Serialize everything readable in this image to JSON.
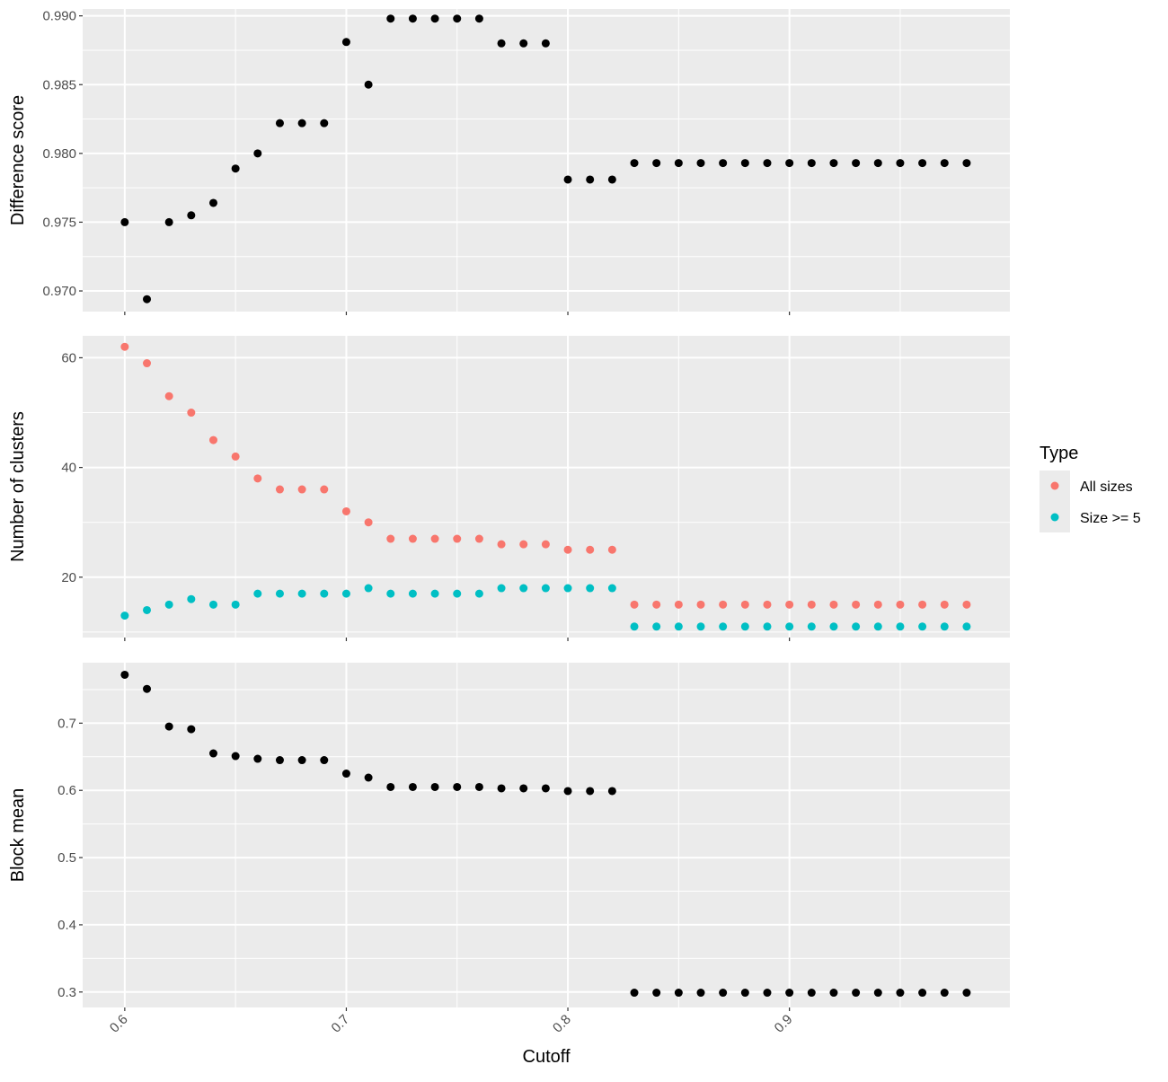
{
  "chart_data": {
    "type": "scatter",
    "xlabel": "Cutoff",
    "xlim": [
      0.581,
      0.9995
    ],
    "x_ticks": [
      "0.6",
      "0.7",
      "0.8",
      "0.9"
    ],
    "x_tick_values": [
      0.6,
      0.7,
      0.8,
      0.9
    ],
    "x": [
      0.6,
      0.61,
      0.62,
      0.63,
      0.64,
      0.65,
      0.66,
      0.67,
      0.68,
      0.69,
      0.7,
      0.71,
      0.72,
      0.73,
      0.74,
      0.75,
      0.76,
      0.77,
      0.78,
      0.79,
      0.8,
      0.81,
      0.82,
      0.83,
      0.84,
      0.85,
      0.86,
      0.87,
      0.88,
      0.89,
      0.9,
      0.91,
      0.92,
      0.93,
      0.94,
      0.95,
      0.96,
      0.97,
      0.98
    ],
    "panels": [
      {
        "ylabel": "Difference score",
        "ylim": [
          0.9685,
          0.9905
        ],
        "y_ticks": [
          "0.970",
          "0.975",
          "0.980",
          "0.985",
          "0.990"
        ],
        "y_tick_values": [
          0.97,
          0.975,
          0.98,
          0.985,
          0.99
        ],
        "series": [
          {
            "color": "#000000",
            "values": [
              0.975,
              0.9694,
              0.975,
              0.9755,
              0.9764,
              0.9789,
              0.98,
              0.9822,
              0.9822,
              0.9822,
              0.9881,
              0.985,
              0.9898,
              0.9898,
              0.9898,
              0.9898,
              0.9898,
              0.988,
              0.988,
              0.988,
              0.9781,
              0.9781,
              0.9781,
              0.9793,
              0.9793,
              0.9793,
              0.9793,
              0.9793,
              0.9793,
              0.9793,
              0.9793,
              0.9793,
              0.9793,
              0.9793,
              0.9793,
              0.9793,
              0.9793,
              0.9793,
              0.9793
            ]
          }
        ]
      },
      {
        "ylabel": "Number of clusters",
        "ylim": [
          9,
          64
        ],
        "y_ticks": [
          "20",
          "40",
          "60"
        ],
        "y_tick_values": [
          20,
          40,
          60
        ],
        "series": [
          {
            "name": "All sizes",
            "color": "#F8766D",
            "values": [
              62,
              59,
              53,
              50,
              45,
              42,
              38,
              36,
              36,
              36,
              32,
              30,
              27,
              27,
              27,
              27,
              27,
              26,
              26,
              26,
              25,
              25,
              25,
              15,
              15,
              15,
              15,
              15,
              15,
              15,
              15,
              15,
              15,
              15,
              15,
              15,
              15,
              15,
              15
            ]
          },
          {
            "name": "Size >= 5",
            "color": "#00BFC4",
            "values": [
              13,
              14,
              15,
              16,
              15,
              15,
              17,
              17,
              17,
              17,
              17,
              18,
              17,
              17,
              17,
              17,
              17,
              18,
              18,
              18,
              18,
              18,
              18,
              11,
              11,
              11,
              11,
              11,
              11,
              11,
              11,
              11,
              11,
              11,
              11,
              11,
              11,
              11,
              11
            ]
          }
        ]
      },
      {
        "ylabel": "Block mean",
        "ylim": [
          0.277,
          0.79
        ],
        "y_ticks": [
          "0.3",
          "0.4",
          "0.5",
          "0.6",
          "0.7"
        ],
        "y_tick_values": [
          0.3,
          0.4,
          0.5,
          0.6,
          0.7
        ],
        "series": [
          {
            "color": "#000000",
            "values": [
              0.772,
              0.751,
              0.695,
              0.691,
              0.655,
              0.651,
              0.647,
              0.645,
              0.645,
              0.645,
              0.625,
              0.619,
              0.605,
              0.605,
              0.605,
              0.605,
              0.605,
              0.603,
              0.603,
              0.603,
              0.599,
              0.599,
              0.599,
              0.299,
              0.299,
              0.299,
              0.299,
              0.299,
              0.299,
              0.299,
              0.299,
              0.299,
              0.299,
              0.299,
              0.299,
              0.299,
              0.299,
              0.299,
              0.299
            ]
          }
        ]
      }
    ],
    "legend": {
      "title": "Type",
      "entries": [
        {
          "label": "All sizes",
          "color": "#F8766D"
        },
        {
          "label": "Size >= 5",
          "color": "#00BFC4"
        }
      ],
      "position": "right"
    },
    "grid": true,
    "panel_background": "#EBEBEB"
  }
}
